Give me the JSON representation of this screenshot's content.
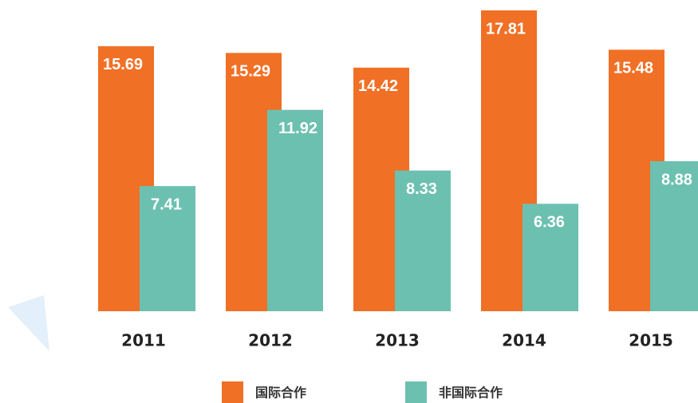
{
  "chart_data": {
    "type": "bar",
    "categories": [
      "2011",
      "2012",
      "2013",
      "2014",
      "2015"
    ],
    "series": [
      {
        "name": "国际合作",
        "color": "#f07026",
        "values": [
          15.69,
          15.29,
          14.42,
          17.81,
          15.48
        ]
      },
      {
        "name": "非国际合作",
        "color": "#6cc0b0",
        "values": [
          7.41,
          11.92,
          8.33,
          6.36,
          8.88
        ]
      }
    ]
  }
}
